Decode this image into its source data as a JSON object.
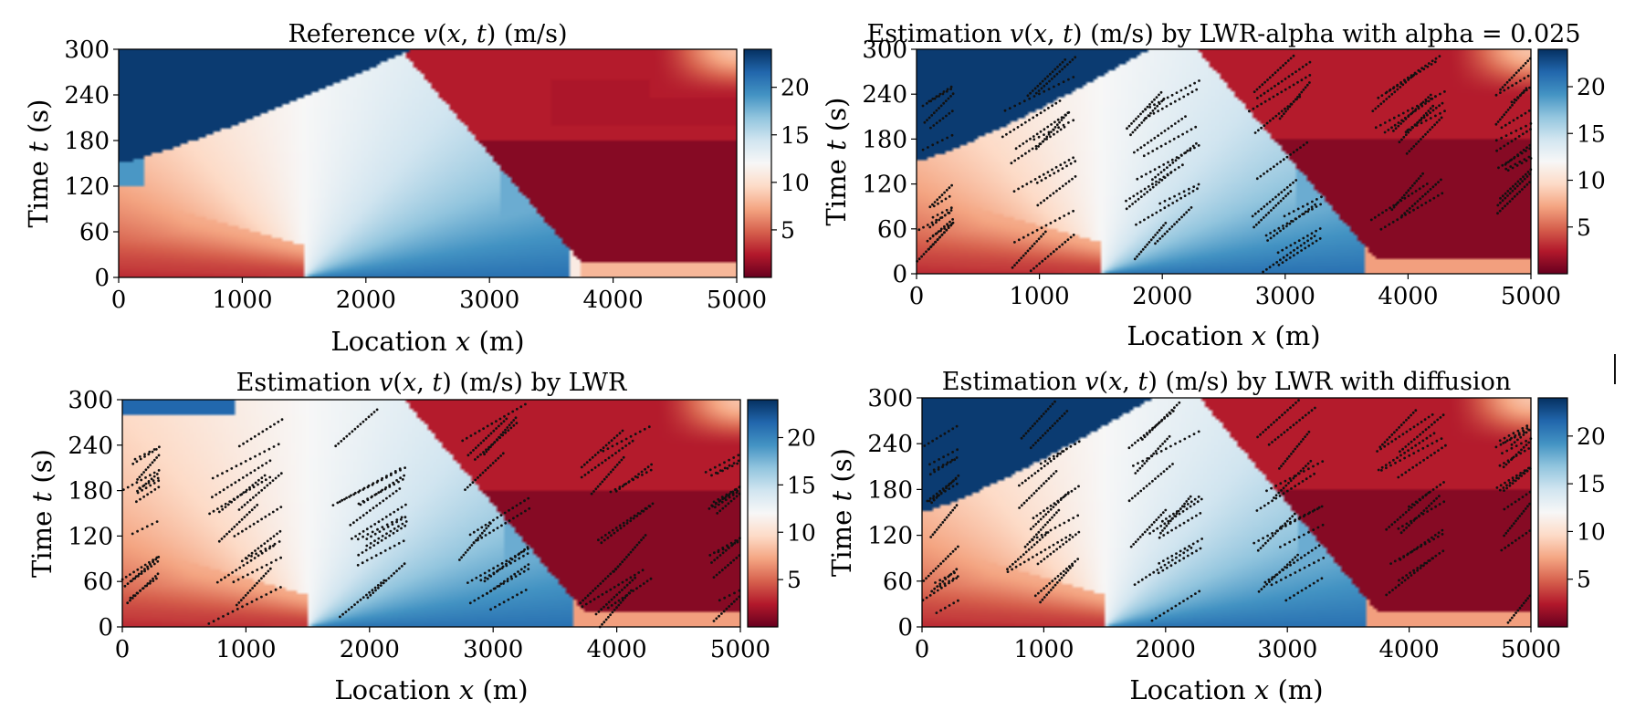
{
  "figure": {
    "colormap_name": "RdBu",
    "colormap_stops": [
      "#67001f",
      "#b2182b",
      "#d6604d",
      "#f4a582",
      "#fddbc7",
      "#f7f7f7",
      "#d1e5f0",
      "#92c5de",
      "#4393c3",
      "#2166ac",
      "#053061"
    ]
  },
  "chart_data": [
    {
      "type": "heatmap",
      "id": "reference",
      "title": "Reference v(x, t) (m/s)",
      "title_parts": [
        "Reference ",
        "v",
        "(",
        "x",
        ", ",
        "t",
        ") (m/s)"
      ],
      "xlabel_parts": [
        "Location ",
        "x",
        " (m)"
      ],
      "ylabel_parts": [
        "Time ",
        "t",
        " (s)"
      ],
      "xlim": [
        0,
        5000
      ],
      "ylim": [
        0,
        300
      ],
      "xticks": [
        "0",
        "1000",
        "2000",
        "3000",
        "4000",
        "5000"
      ],
      "yticks": [
        "0",
        "60",
        "120",
        "180",
        "240",
        "300"
      ],
      "colorbar": {
        "vmin": 0,
        "vmax": 24,
        "ticks": [
          "5",
          "10",
          "15",
          "20"
        ]
      },
      "has_observations": false
    },
    {
      "type": "heatmap",
      "id": "lwr-alpha",
      "title": "Estimation v(x, t) (m/s) by LWR-alpha with alpha = 0.025",
      "title_parts": [
        "Estimation ",
        "v",
        "(",
        "x",
        ", ",
        "t",
        ") (m/s) by LWR-alpha with alpha = 0.025"
      ],
      "xlabel_parts": [
        "Location ",
        "x",
        " (m)"
      ],
      "ylabel_parts": [
        "Time ",
        "t",
        " (s)"
      ],
      "xlim": [
        0,
        5000
      ],
      "ylim": [
        0,
        300
      ],
      "xticks": [
        "0",
        "1000",
        "2000",
        "3000",
        "4000",
        "5000"
      ],
      "yticks": [
        "0",
        "60",
        "120",
        "180",
        "240",
        "300"
      ],
      "colorbar": {
        "vmin": 0,
        "vmax": 24,
        "ticks": [
          "5",
          "10",
          "15",
          "20"
        ]
      },
      "has_observations": true
    },
    {
      "type": "heatmap",
      "id": "lwr",
      "title": "Estimation v(x, t) (m/s) by LWR",
      "title_parts": [
        "Estimation ",
        "v",
        "(",
        "x",
        ", ",
        "t",
        ") (m/s) by LWR"
      ],
      "xlabel_parts": [
        "Location ",
        "x",
        " (m)"
      ],
      "ylabel_parts": [
        "Time ",
        "t",
        " (s)"
      ],
      "xlim": [
        0,
        5000
      ],
      "ylim": [
        0,
        300
      ],
      "xticks": [
        "0",
        "1000",
        "2000",
        "3000",
        "4000",
        "5000"
      ],
      "yticks": [
        "0",
        "60",
        "120",
        "180",
        "240",
        "300"
      ],
      "colorbar": {
        "vmin": 0,
        "vmax": 24,
        "ticks": [
          "5",
          "10",
          "15",
          "20"
        ]
      },
      "has_observations": true
    },
    {
      "type": "heatmap",
      "id": "lwr-diffusion",
      "title": "Estimation v(x, t) (m/s) by LWR with diffusion",
      "title_parts": [
        "Estimation ",
        "v",
        "(",
        "x",
        ", ",
        "t",
        ") (m/s) by LWR with diffusion"
      ],
      "xlabel_parts": [
        "Location ",
        "x",
        " (m)"
      ],
      "ylabel_parts": [
        "Time ",
        "t",
        " (s)"
      ],
      "xlim": [
        0,
        5000
      ],
      "ylim": [
        0,
        300
      ],
      "xticks": [
        "0",
        "1000",
        "2000",
        "3000",
        "4000",
        "5000"
      ],
      "yticks": [
        "0",
        "60",
        "120",
        "180",
        "240",
        "300"
      ],
      "colorbar": {
        "vmin": 0,
        "vmax": 24,
        "ticks": [
          "5",
          "10",
          "15",
          "20"
        ]
      },
      "has_observations": true
    }
  ]
}
